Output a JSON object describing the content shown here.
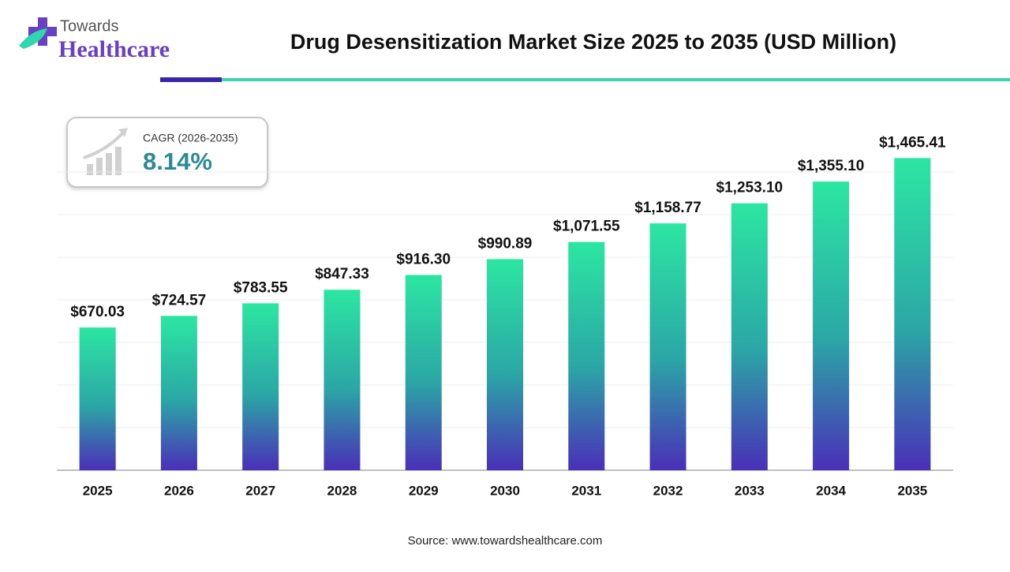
{
  "logo": {
    "line1": "Towards",
    "line2": "Healthcare"
  },
  "cagr": {
    "label": "CAGR (2026-2035)",
    "value": "8.14%"
  },
  "source": "Source: www.towardshealthcare.com",
  "chart_data": {
    "type": "bar",
    "title": "Drug Desensitization Market Size 2025 to 2035 (USD Million)",
    "categories": [
      "2025",
      "2026",
      "2027",
      "2028",
      "2029",
      "2030",
      "2031",
      "2032",
      "2033",
      "2034",
      "2035"
    ],
    "values": [
      670.03,
      724.57,
      783.55,
      847.33,
      916.3,
      990.89,
      1071.55,
      1158.77,
      1253.1,
      1355.1,
      1465.41
    ],
    "value_labels": [
      "$670.03",
      "$724.57",
      "$783.55",
      "$847.33",
      "$916.30",
      "$990.89",
      "$1,071.55",
      "$1,158.77",
      "$1,253.10",
      "$1,355.10",
      "$1,465.41"
    ],
    "colors": [
      "#2ce6a2",
      "#2ba6a6",
      "#4a2fb8"
    ],
    "ylim": [
      0,
      1600
    ],
    "yticks": [
      0,
      200,
      400,
      600,
      800,
      1000,
      1200,
      1400
    ],
    "grid": true
  }
}
